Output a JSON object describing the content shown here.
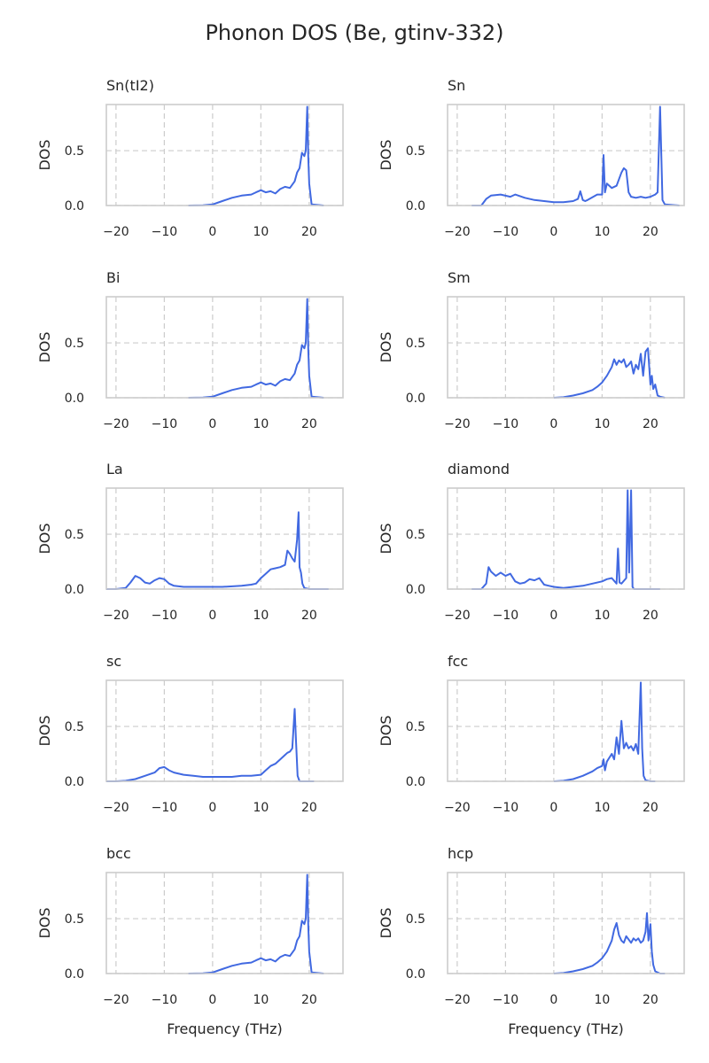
{
  "title": "Phonon DOS (Be, gtinv-332)",
  "chart_data": {
    "type": "line",
    "title": "Phonon DOS (Be, gtinv-332)",
    "layout": "5x2 grid",
    "grid": true,
    "xlim": [
      -22,
      27
    ],
    "ylim": [
      0,
      0.92
    ],
    "xticks": [
      -20,
      -10,
      0,
      10,
      20
    ],
    "yticks": [
      0.0,
      0.5
    ],
    "ylabel": "DOS",
    "xlabel": "Frequency (THz)",
    "color": "#4169e1",
    "panels": [
      {
        "title": "Sn(tI2)",
        "x": [
          -5,
          -2,
          0,
          2,
          4,
          6,
          8,
          9,
          10,
          11,
          12,
          13,
          14,
          15,
          16,
          17,
          17.5,
          18,
          18.5,
          19,
          19.3,
          19.6,
          19.8,
          20,
          20.5,
          23
        ],
        "y": [
          0,
          0.002,
          0.01,
          0.04,
          0.07,
          0.09,
          0.1,
          0.12,
          0.14,
          0.12,
          0.13,
          0.11,
          0.15,
          0.17,
          0.16,
          0.22,
          0.3,
          0.34,
          0.48,
          0.45,
          0.5,
          0.9,
          0.45,
          0.2,
          0.01,
          0
        ]
      },
      {
        "title": "Sn",
        "x": [
          -17,
          -15,
          -14,
          -13,
          -11,
          -9,
          -8,
          -6,
          -4,
          -2,
          0,
          2,
          4,
          5,
          5.5,
          6,
          6.5,
          7,
          9,
          10,
          10.3,
          10.6,
          11,
          12,
          13,
          14,
          14.5,
          15,
          15.5,
          16,
          17,
          18,
          19,
          20,
          21,
          21.5,
          22,
          22.5,
          23,
          26
        ],
        "y": [
          0,
          0,
          0.06,
          0.09,
          0.1,
          0.08,
          0.1,
          0.07,
          0.05,
          0.04,
          0.03,
          0.03,
          0.04,
          0.06,
          0.13,
          0.05,
          0.04,
          0.05,
          0.1,
          0.1,
          0.46,
          0.12,
          0.2,
          0.16,
          0.18,
          0.3,
          0.34,
          0.32,
          0.12,
          0.08,
          0.07,
          0.08,
          0.07,
          0.08,
          0.1,
          0.12,
          0.9,
          0.05,
          0.01,
          0
        ]
      },
      {
        "title": "Bi",
        "x": [
          -5,
          -2,
          0,
          2,
          4,
          6,
          8,
          9,
          10,
          11,
          12,
          13,
          14,
          15,
          16,
          17,
          17.5,
          18,
          18.5,
          19,
          19.3,
          19.6,
          19.8,
          20,
          20.5,
          23
        ],
        "y": [
          0,
          0.002,
          0.01,
          0.04,
          0.07,
          0.09,
          0.1,
          0.12,
          0.14,
          0.12,
          0.13,
          0.11,
          0.15,
          0.17,
          0.16,
          0.22,
          0.3,
          0.34,
          0.48,
          0.45,
          0.5,
          0.9,
          0.45,
          0.2,
          0.01,
          0
        ]
      },
      {
        "title": "Sm",
        "x": [
          0,
          2,
          4,
          6,
          8,
          9,
          10,
          11,
          12,
          12.5,
          13,
          13.5,
          14,
          14.5,
          15,
          15.5,
          16,
          16.5,
          17,
          17.5,
          18,
          18.5,
          19,
          19.5,
          20,
          20.3,
          20.6,
          21,
          21.5,
          22,
          23
        ],
        "y": [
          0,
          0.005,
          0.02,
          0.04,
          0.07,
          0.1,
          0.14,
          0.2,
          0.28,
          0.35,
          0.3,
          0.34,
          0.32,
          0.35,
          0.28,
          0.3,
          0.33,
          0.22,
          0.3,
          0.26,
          0.4,
          0.2,
          0.42,
          0.45,
          0.12,
          0.2,
          0.08,
          0.12,
          0.02,
          0.01,
          0
        ]
      },
      {
        "title": "La",
        "x": [
          -22,
          -20,
          -18,
          -17,
          -16,
          -15,
          -14,
          -13,
          -12,
          -11,
          -10,
          -9,
          -8,
          -6,
          -2,
          0,
          2,
          6,
          8,
          9,
          10,
          11,
          12,
          13,
          14,
          15,
          15.5,
          16,
          16.5,
          17,
          17.5,
          17.8,
          18,
          18.3,
          18.6,
          19,
          20,
          24
        ],
        "y": [
          0,
          0,
          0.01,
          0.06,
          0.12,
          0.1,
          0.06,
          0.05,
          0.08,
          0.1,
          0.09,
          0.05,
          0.03,
          0.02,
          0.02,
          0.02,
          0.02,
          0.03,
          0.04,
          0.05,
          0.1,
          0.14,
          0.18,
          0.19,
          0.2,
          0.22,
          0.35,
          0.32,
          0.28,
          0.25,
          0.45,
          0.7,
          0.2,
          0.15,
          0.05,
          0.01,
          0,
          0
        ]
      },
      {
        "title": "diamond",
        "x": [
          -17,
          -15,
          -14,
          -13.5,
          -13,
          -12,
          -11,
          -10,
          -9,
          -8,
          -7,
          -6,
          -5,
          -4,
          -3,
          -2,
          -1,
          0,
          2,
          4,
          6,
          8,
          10,
          11,
          12,
          13,
          13.3,
          13.6,
          14,
          15,
          15.3,
          15.6,
          16,
          16.3,
          16.6,
          17,
          22
        ],
        "y": [
          0,
          0,
          0.05,
          0.2,
          0.16,
          0.12,
          0.15,
          0.12,
          0.14,
          0.07,
          0.05,
          0.06,
          0.09,
          0.08,
          0.1,
          0.04,
          0.03,
          0.02,
          0.01,
          0.02,
          0.03,
          0.05,
          0.07,
          0.09,
          0.1,
          0.05,
          0.37,
          0.06,
          0.05,
          0.1,
          0.9,
          0.15,
          0.9,
          0.02,
          0,
          0,
          0
        ]
      },
      {
        "title": "sc",
        "x": [
          -22,
          -20,
          -18,
          -16,
          -14,
          -12,
          -11,
          -10,
          -9,
          -8,
          -6,
          -4,
          -2,
          0,
          2,
          4,
          6,
          8,
          10,
          11,
          12,
          13,
          14,
          15,
          15.5,
          16,
          16.5,
          17,
          17.3,
          17.6,
          18,
          21
        ],
        "y": [
          0,
          0,
          0.005,
          0.02,
          0.05,
          0.08,
          0.12,
          0.13,
          0.1,
          0.08,
          0.06,
          0.05,
          0.04,
          0.04,
          0.04,
          0.04,
          0.05,
          0.05,
          0.06,
          0.1,
          0.14,
          0.16,
          0.2,
          0.24,
          0.26,
          0.27,
          0.3,
          0.66,
          0.35,
          0.05,
          0,
          0
        ]
      },
      {
        "title": "fcc",
        "x": [
          0,
          2,
          4,
          6,
          8,
          9,
          10,
          10.3,
          10.6,
          11,
          12,
          12.5,
          13,
          13.5,
          14,
          14.5,
          15,
          15.5,
          16,
          16.5,
          17,
          17.5,
          18,
          18.3,
          18.6,
          19,
          20,
          21
        ],
        "y": [
          0,
          0.005,
          0.02,
          0.05,
          0.09,
          0.12,
          0.14,
          0.2,
          0.1,
          0.18,
          0.25,
          0.2,
          0.4,
          0.25,
          0.55,
          0.3,
          0.35,
          0.3,
          0.32,
          0.28,
          0.34,
          0.25,
          0.9,
          0.3,
          0.05,
          0.01,
          0,
          0
        ]
      },
      {
        "title": "bcc",
        "x": [
          -5,
          -2,
          0,
          2,
          4,
          6,
          8,
          9,
          10,
          11,
          12,
          13,
          14,
          15,
          16,
          17,
          17.5,
          18,
          18.5,
          19,
          19.3,
          19.6,
          19.8,
          20,
          20.5,
          23
        ],
        "y": [
          0,
          0.002,
          0.01,
          0.04,
          0.07,
          0.09,
          0.1,
          0.12,
          0.14,
          0.12,
          0.13,
          0.11,
          0.15,
          0.17,
          0.16,
          0.22,
          0.3,
          0.34,
          0.48,
          0.45,
          0.5,
          0.9,
          0.45,
          0.2,
          0.01,
          0
        ]
      },
      {
        "title": "hcp",
        "x": [
          0,
          2,
          4,
          6,
          8,
          9,
          10,
          11,
          12,
          12.5,
          13,
          13.5,
          14,
          14.5,
          15,
          16,
          16.5,
          17,
          17.5,
          18,
          18.5,
          19,
          19.3,
          19.6,
          20,
          20.3,
          20.6,
          21,
          22,
          23
        ],
        "y": [
          0,
          0.005,
          0.02,
          0.04,
          0.07,
          0.1,
          0.14,
          0.2,
          0.3,
          0.4,
          0.46,
          0.35,
          0.3,
          0.28,
          0.34,
          0.28,
          0.32,
          0.3,
          0.32,
          0.28,
          0.3,
          0.38,
          0.55,
          0.3,
          0.45,
          0.2,
          0.08,
          0.02,
          0,
          0
        ]
      }
    ]
  }
}
